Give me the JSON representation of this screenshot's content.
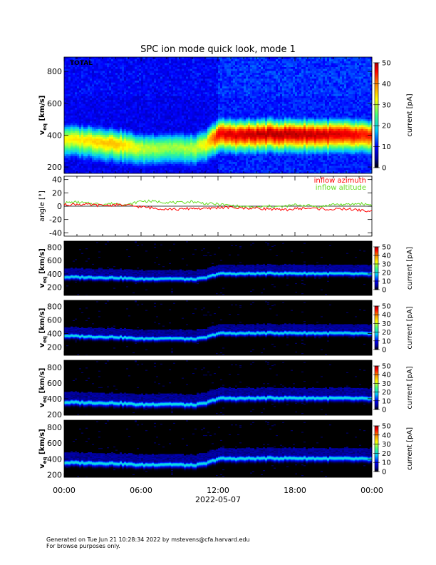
{
  "title": "SPC ion mode quick look, mode 1",
  "footer": {
    "line1": "Generated on Tue Jun 21 10:28:34 2022 by mstevens@cfa.harvard.edu",
    "line2": "For browse purposes only."
  },
  "x_axis": {
    "tick_labels": [
      "00:00",
      "06:00",
      "12:00",
      "18:00",
      "00:00"
    ],
    "date_label": "2022-05-07",
    "range_hours": [
      0,
      24
    ]
  },
  "colorbar": {
    "label": "current [pA]",
    "tick_labels": [
      "0",
      "10",
      "20",
      "30",
      "40",
      "50"
    ],
    "range": [
      0,
      50
    ]
  },
  "chart_data": [
    {
      "type": "heatmap",
      "panel": "total",
      "annotation": "TOTAL",
      "ylabel": "v_eq [km/s]",
      "yticks": [
        "200",
        "400",
        "600",
        "800"
      ],
      "ylim": [
        160,
        890
      ],
      "zlim": [
        0,
        50
      ],
      "x_hours": [
        0,
        2,
        4,
        6,
        8,
        10,
        11,
        12,
        14,
        16,
        18,
        20,
        22,
        24
      ],
      "peak_speed": [
        380,
        370,
        350,
        320,
        330,
        320,
        340,
        410,
        405,
        410,
        410,
        408,
        405,
        400
      ],
      "peak_current": [
        28,
        30,
        32,
        26,
        24,
        25,
        28,
        42,
        44,
        45,
        45,
        44,
        43,
        40
      ]
    },
    {
      "type": "line",
      "panel": "angle",
      "ylabel": "angle [°]",
      "yticks": [
        "-40",
        "-20",
        "0",
        "20",
        "40"
      ],
      "ylim": [
        -45,
        45
      ],
      "legend": [
        "inflow azimuth",
        "inflow altitude"
      ],
      "legend_position": "top-right",
      "x": [
        0,
        1,
        2,
        3,
        4,
        5,
        6,
        7,
        8,
        9,
        10,
        11,
        12,
        13,
        14,
        15,
        16,
        17,
        18,
        19,
        20,
        21,
        22,
        23,
        24
      ],
      "series": [
        {
          "name": "inflow azimuth",
          "color": "#ff0000",
          "values": [
            2,
            3,
            2,
            1,
            2,
            1,
            -1,
            -3,
            -4,
            -5,
            -3,
            -4,
            -2,
            -2,
            -3,
            -3,
            -4,
            -6,
            -4,
            -3,
            -4,
            -5,
            -4,
            -6,
            -8
          ]
        },
        {
          "name": "inflow altitude",
          "color": "#66dd22",
          "values": [
            5,
            6,
            4,
            3,
            4,
            2,
            8,
            7,
            6,
            5,
            7,
            4,
            3,
            1,
            -1,
            -2,
            0,
            -1,
            2,
            1,
            -1,
            3,
            2,
            4,
            2
          ]
        }
      ]
    },
    {
      "type": "heatmap",
      "panel": "mode-1",
      "ylabel": "v_eq [km/s]",
      "yticks": [
        "200",
        "400",
        "600",
        "800"
      ],
      "ylim": [
        80,
        890
      ],
      "zlim": [
        0,
        50
      ],
      "x_hours": [
        0,
        2,
        4,
        6,
        8,
        10,
        11,
        12,
        14,
        16,
        18,
        20,
        22,
        24
      ],
      "peak_speed": [
        360,
        355,
        350,
        330,
        340,
        325,
        345,
        410,
        410,
        415,
        415,
        412,
        410,
        405
      ]
    },
    {
      "type": "heatmap",
      "panel": "mode-2",
      "ylabel": "v_eq [km/s]",
      "yticks": [
        "200",
        "400",
        "600",
        "800"
      ],
      "ylim": [
        80,
        890
      ],
      "zlim": [
        0,
        50
      ],
      "x_hours": [
        0,
        2,
        4,
        6,
        8,
        10,
        11,
        12,
        14,
        16,
        18,
        20,
        22,
        24
      ],
      "peak_speed": [
        375,
        360,
        355,
        330,
        340,
        325,
        345,
        410,
        410,
        415,
        415,
        412,
        410,
        405
      ]
    },
    {
      "type": "heatmap",
      "panel": "mode-3",
      "ylabel": "v_eq [km/s]",
      "yticks": [
        "200",
        "400",
        "600",
        "800"
      ],
      "ylim": [
        190,
        890
      ],
      "zlim": [
        0,
        50
      ],
      "x_hours": [
        0,
        2,
        4,
        6,
        8,
        10,
        11,
        12,
        14,
        16,
        18,
        20,
        22,
        24
      ],
      "peak_speed": [
        360,
        355,
        350,
        330,
        340,
        325,
        345,
        410,
        410,
        415,
        415,
        412,
        410,
        405
      ]
    },
    {
      "type": "heatmap",
      "panel": "mode-4",
      "ylabel": "v_eq [km/s]",
      "yticks": [
        "200",
        "400",
        "600",
        "800"
      ],
      "ylim": [
        170,
        890
      ],
      "zlim": [
        0,
        50
      ],
      "x_hours": [
        0,
        2,
        4,
        6,
        8,
        10,
        11,
        12,
        14,
        16,
        18,
        20,
        22,
        24
      ],
      "peak_speed": [
        360,
        355,
        350,
        330,
        340,
        325,
        345,
        410,
        410,
        415,
        415,
        412,
        410,
        405
      ]
    }
  ]
}
